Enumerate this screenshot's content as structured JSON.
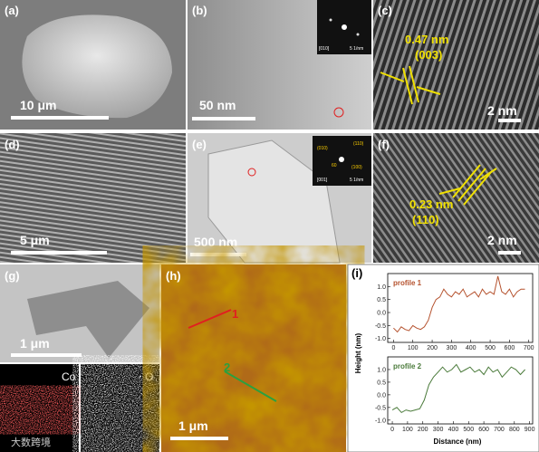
{
  "panels": {
    "a": {
      "label": "(a)",
      "scale": "10 μm"
    },
    "b": {
      "label": "(b)",
      "scale": "50 nm",
      "inset_zone": "[010]",
      "inset_scale": "5 1/nm"
    },
    "c": {
      "label": "(c)",
      "spacing": "0.47 nm",
      "plane": "(003)",
      "scale": "2 nm"
    },
    "d": {
      "label": "(d)",
      "scale": "5 μm"
    },
    "e": {
      "label": "(e)",
      "scale": "500 nm",
      "inset_spots": [
        "(010)",
        "(110)",
        "60",
        "(100)"
      ],
      "inset_zone": "[001]",
      "inset_scale": "5 1/nm"
    },
    "f": {
      "label": "(f)",
      "spacing": "0.23 nm",
      "plane": "(110)",
      "scale": "2 nm"
    },
    "g": {
      "label": "(g)",
      "scale": "1 μm",
      "map1": "Co",
      "map2": "O"
    },
    "h": {
      "label": "(h)",
      "line1": "1",
      "line2": "2",
      "scale": "1 μm"
    },
    "i": {
      "label": "(i)",
      "xlabel": "Distance (nm)",
      "ylabel": "Height (nm)"
    }
  },
  "watermark": "大数跨境",
  "chart_data": [
    {
      "type": "line",
      "x": [
        0,
        20,
        40,
        60,
        80,
        100,
        120,
        140,
        160,
        180,
        200,
        220,
        240,
        260,
        280,
        300,
        320,
        340,
        360,
        380,
        400,
        420,
        440,
        460,
        480,
        500,
        520,
        540,
        560,
        580,
        600,
        620,
        640,
        660,
        680
      ],
      "series": [
        {
          "name": "profile 1",
          "color": "#b5522e",
          "values": [
            -0.6,
            -0.75,
            -0.55,
            -0.65,
            -0.7,
            -0.5,
            -0.6,
            -0.65,
            -0.55,
            -0.3,
            0.2,
            0.5,
            0.6,
            0.9,
            0.7,
            0.6,
            0.8,
            0.7,
            0.9,
            0.6,
            0.7,
            0.8,
            0.6,
            0.9,
            0.7,
            0.8,
            0.7,
            1.4,
            0.8,
            0.7,
            0.9,
            0.6,
            0.8,
            0.9,
            0.9
          ]
        }
      ],
      "xlim": [
        -30,
        720
      ],
      "xticks": [
        0,
        100,
        200,
        300,
        400,
        500,
        600,
        700
      ],
      "ylim": [
        -1.15,
        1.5
      ],
      "yticks": [
        {
          "value": -1,
          "label": "-1.0"
        },
        -0.5,
        {
          "value": 0,
          "label": "0.0"
        },
        0.5,
        {
          "value": 1,
          "label": "1.0"
        }
      ]
    },
    {
      "type": "line",
      "x": [
        0,
        30,
        60,
        90,
        120,
        150,
        180,
        210,
        240,
        270,
        300,
        330,
        360,
        390,
        420,
        450,
        480,
        510,
        540,
        570,
        600,
        630,
        660,
        690,
        720,
        750,
        780,
        810,
        840,
        870
      ],
      "series": [
        {
          "name": "profile 2",
          "color": "#4a7a3a",
          "values": [
            -0.6,
            -0.5,
            -0.7,
            -0.6,
            -0.65,
            -0.6,
            -0.55,
            -0.2,
            0.4,
            0.7,
            0.9,
            1.1,
            0.9,
            1.0,
            1.2,
            0.9,
            1.0,
            1.1,
            0.9,
            1.0,
            0.8,
            1.1,
            0.9,
            1.0,
            0.7,
            0.9,
            1.1,
            1.0,
            0.8,
            1.0
          ]
        }
      ],
      "xlim": [
        -30,
        920
      ],
      "xticks": [
        0,
        100,
        200,
        300,
        400,
        500,
        600,
        700,
        800,
        900
      ],
      "ylim": [
        -1.15,
        1.5
      ],
      "yticks": [
        {
          "value": -1,
          "label": "-1.0"
        },
        -0.5,
        {
          "value": 0,
          "label": "0.0"
        },
        0.5,
        {
          "value": 1,
          "label": "1.0"
        }
      ]
    }
  ]
}
